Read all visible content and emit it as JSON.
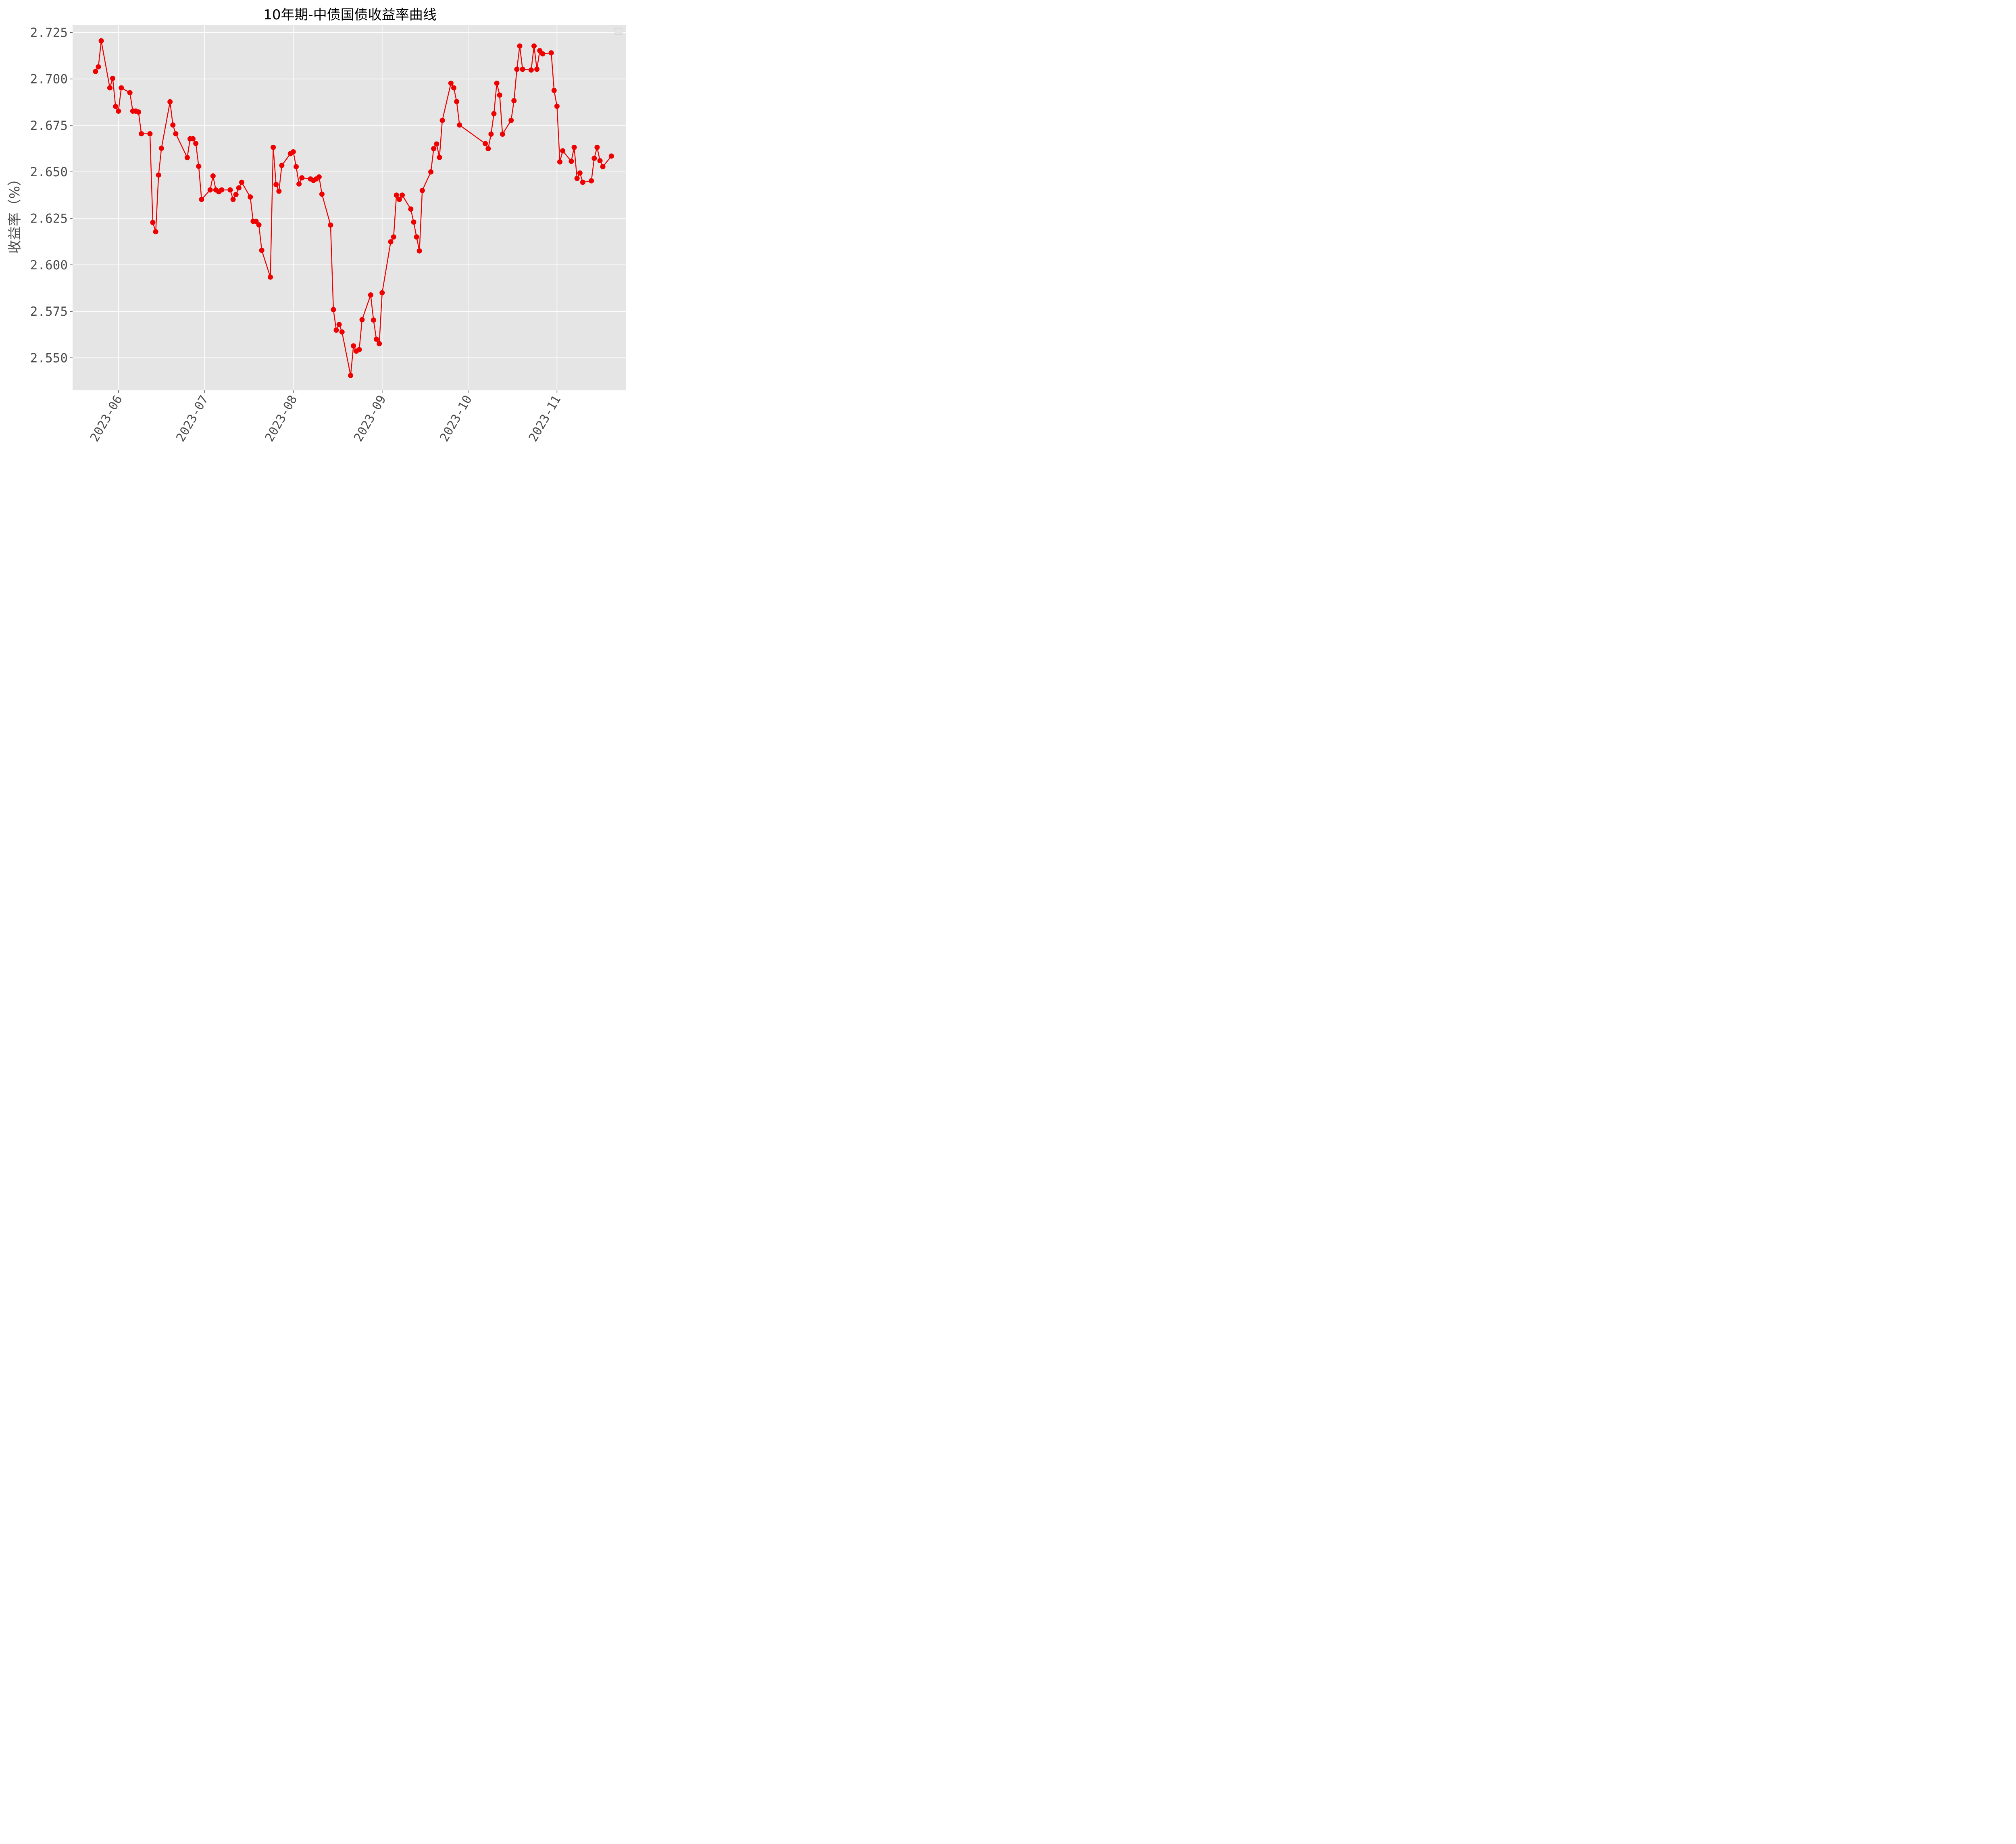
{
  "chart_data": {
    "type": "line",
    "title": "10年期-中债国债收益率曲线",
    "xlabel": "",
    "ylabel": "收益率（%）",
    "x_ticks": [
      "2023-06",
      "2023-07",
      "2023-08",
      "2023-09",
      "2023-10",
      "2023-11"
    ],
    "y_ticks": [
      "2.550",
      "2.575",
      "2.600",
      "2.625",
      "2.650",
      "2.675",
      "2.700",
      "2.725"
    ],
    "xlim": [
      "2023-05-16",
      "2023-11-25"
    ],
    "ylim": [
      2.5325,
      2.729
    ],
    "grid": true,
    "legend": "top-right",
    "line_color": "#ee0000",
    "background_color": "#e5e5e5",
    "series": [
      {
        "name": "",
        "x": [
          "2023-05-24",
          "2023-05-25",
          "2023-05-26",
          "2023-05-29",
          "2023-05-30",
          "2023-05-31",
          "2023-06-01",
          "2023-06-02",
          "2023-06-05",
          "2023-06-06",
          "2023-06-07",
          "2023-06-08",
          "2023-06-09",
          "2023-06-12",
          "2023-06-13",
          "2023-06-14",
          "2023-06-15",
          "2023-06-16",
          "2023-06-19",
          "2023-06-20",
          "2023-06-21",
          "2023-06-25",
          "2023-06-26",
          "2023-06-27",
          "2023-06-28",
          "2023-06-29",
          "2023-06-30",
          "2023-07-03",
          "2023-07-04",
          "2023-07-05",
          "2023-07-06",
          "2023-07-07",
          "2023-07-10",
          "2023-07-11",
          "2023-07-12",
          "2023-07-13",
          "2023-07-14",
          "2023-07-17",
          "2023-07-18",
          "2023-07-19",
          "2023-07-20",
          "2023-07-21",
          "2023-07-24",
          "2023-07-25",
          "2023-07-26",
          "2023-07-27",
          "2023-07-28",
          "2023-07-31",
          "2023-08-01",
          "2023-08-02",
          "2023-08-03",
          "2023-08-04",
          "2023-08-07",
          "2023-08-08",
          "2023-08-09",
          "2023-08-10",
          "2023-08-11",
          "2023-08-14",
          "2023-08-15",
          "2023-08-16",
          "2023-08-17",
          "2023-08-18",
          "2023-08-21",
          "2023-08-22",
          "2023-08-23",
          "2023-08-24",
          "2023-08-25",
          "2023-08-28",
          "2023-08-29",
          "2023-08-30",
          "2023-08-31",
          "2023-09-01",
          "2023-09-04",
          "2023-09-05",
          "2023-09-06",
          "2023-09-07",
          "2023-09-08",
          "2023-09-11",
          "2023-09-12",
          "2023-09-13",
          "2023-09-14",
          "2023-09-15",
          "2023-09-18",
          "2023-09-19",
          "2023-09-20",
          "2023-09-21",
          "2023-09-22",
          "2023-09-25",
          "2023-09-26",
          "2023-09-27",
          "2023-09-28",
          "2023-10-07",
          "2023-10-08",
          "2023-10-09",
          "2023-10-10",
          "2023-10-11",
          "2023-10-12",
          "2023-10-13",
          "2023-10-16",
          "2023-10-17",
          "2023-10-18",
          "2023-10-19",
          "2023-10-20",
          "2023-10-23",
          "2023-10-24",
          "2023-10-25",
          "2023-10-26",
          "2023-10-27",
          "2023-10-30",
          "2023-10-31",
          "2023-11-01",
          "2023-11-02",
          "2023-11-03",
          "2023-11-06",
          "2023-11-07",
          "2023-11-08",
          "2023-11-09",
          "2023-11-10",
          "2023-11-13",
          "2023-11-14",
          "2023-11-15",
          "2023-11-16",
          "2023-11-17",
          "2023-11-20"
        ],
        "y": [
          2.704,
          2.7065,
          2.7205,
          2.6952,
          2.7003,
          2.6852,
          2.6827,
          2.6952,
          2.6926,
          2.6827,
          2.6827,
          2.6822,
          2.6705,
          2.6705,
          2.6228,
          2.6178,
          2.6483,
          2.6627,
          2.6877,
          2.6752,
          2.6705,
          2.6577,
          2.6678,
          2.6678,
          2.6653,
          2.653,
          2.6352,
          2.6403,
          2.6478,
          2.6403,
          2.6393,
          2.6403,
          2.6403,
          2.6352,
          2.6378,
          2.6414,
          2.6444,
          2.6365,
          2.6234,
          2.6234,
          2.6215,
          2.6078,
          2.5934,
          2.6632,
          2.6432,
          2.6396,
          2.6535,
          2.6598,
          2.6608,
          2.6528,
          2.6435,
          2.6468,
          2.6462,
          2.6454,
          2.6462,
          2.6473,
          2.638,
          2.6214,
          2.5759,
          2.5649,
          2.5679,
          2.5639,
          2.5405,
          2.5564,
          2.5536,
          2.5544,
          2.5705,
          2.5838,
          2.5703,
          2.56,
          2.5576,
          2.585,
          2.6124,
          2.615,
          2.6375,
          2.6352,
          2.6375,
          2.63,
          2.623,
          2.615,
          2.6075,
          2.64,
          2.65,
          2.6625,
          2.665,
          2.6578,
          2.6777,
          2.6977,
          2.6952,
          2.6878,
          2.6752,
          2.6652,
          2.6625,
          2.6703,
          2.6813,
          2.6977,
          2.6913,
          2.6703,
          2.6777,
          2.6883,
          2.7052,
          2.7177,
          2.7052,
          2.7048,
          2.7177,
          2.7052,
          2.7152,
          2.7135,
          2.714,
          2.6938,
          2.6853,
          2.6554,
          2.6613,
          2.6557,
          2.6632,
          2.6465,
          2.6494,
          2.6444,
          2.6452,
          2.6573,
          2.6632,
          2.656,
          2.6528,
          2.6585
        ]
      }
    ]
  }
}
